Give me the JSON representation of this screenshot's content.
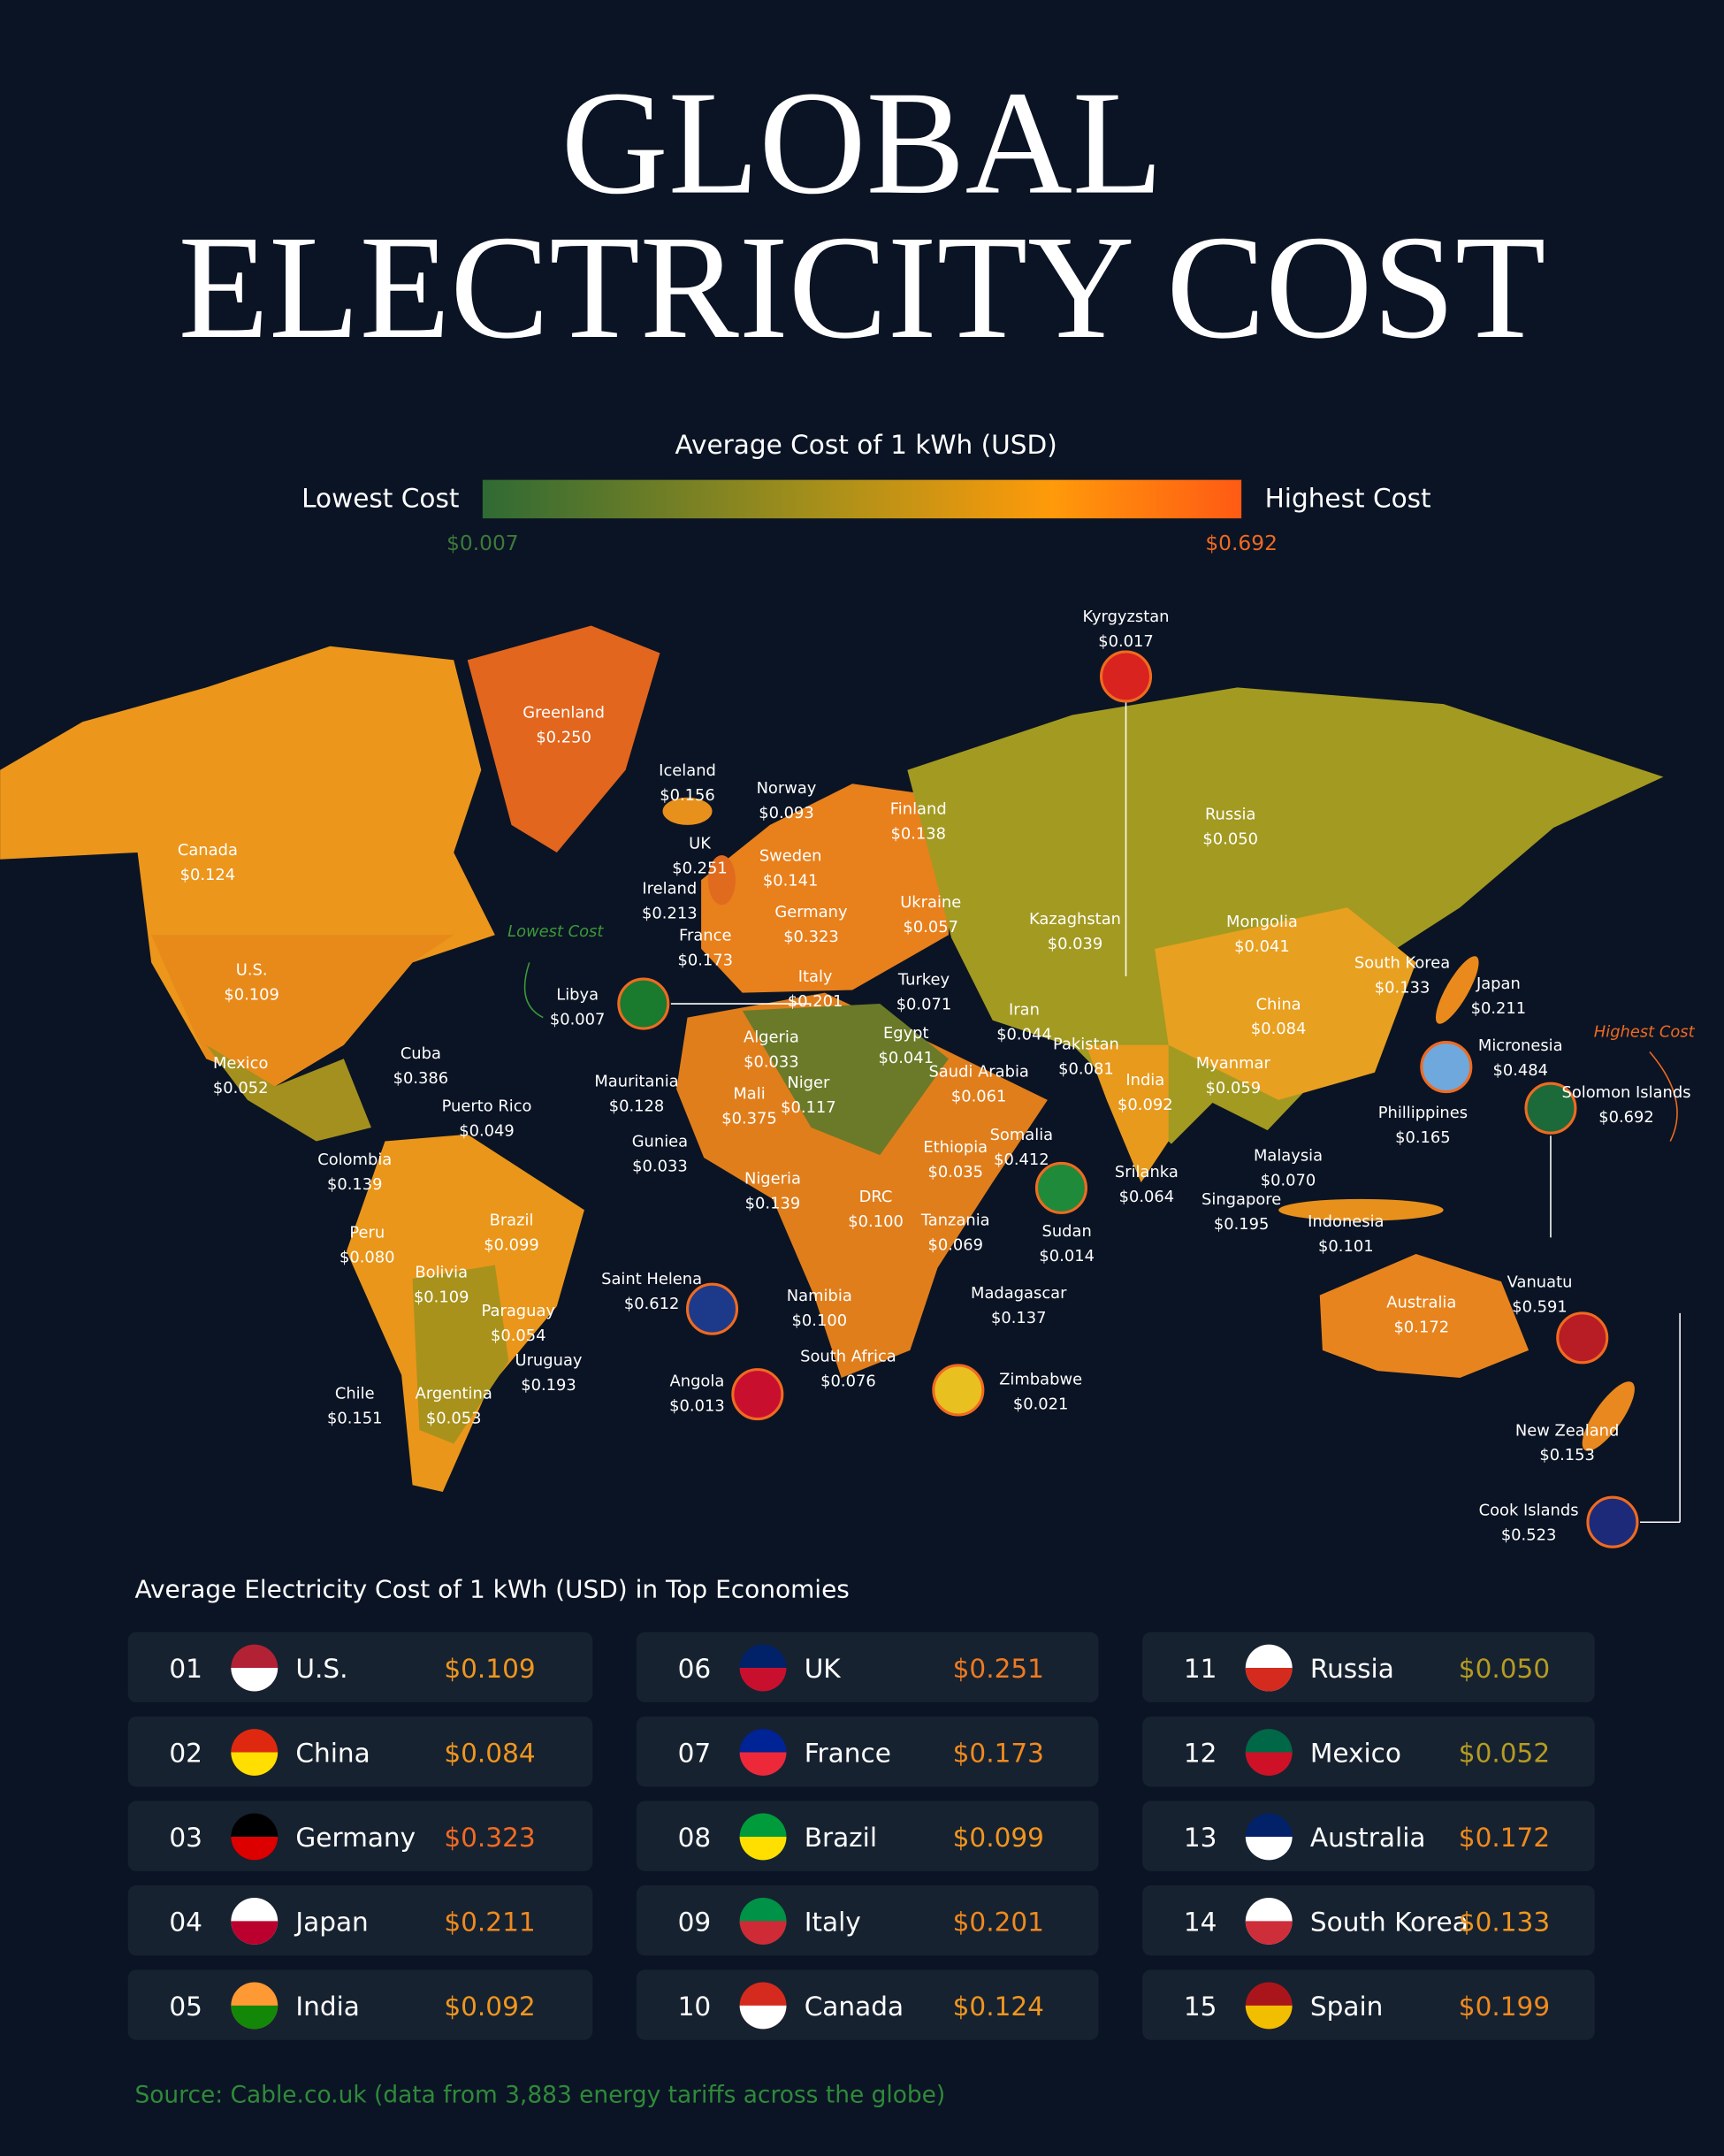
{
  "header": {
    "title_line1": "GLOBAL",
    "title_line2": "ELECTRICITY COST"
  },
  "legend": {
    "title": "Average Cost of 1 kWh (USD)",
    "low_label": "Lowest Cost",
    "high_label": "Highest Cost",
    "min": "$0.007",
    "max": "$0.692"
  },
  "map": {
    "callouts": {
      "lowest": "Lowest Cost",
      "highest": "Highest Cost"
    },
    "labels": [
      {
        "name": "Kyrgyzstan",
        "value": "$0.017"
      },
      {
        "name": "Greenland",
        "value": "$0.250"
      },
      {
        "name": "Iceland",
        "value": "$0.156"
      },
      {
        "name": "Norway",
        "value": "$0.093"
      },
      {
        "name": "Finland",
        "value": "$0.138"
      },
      {
        "name": "Russia",
        "value": "$0.050"
      },
      {
        "name": "Canada",
        "value": "$0.124"
      },
      {
        "name": "UK",
        "value": "$0.251"
      },
      {
        "name": "Sweden",
        "value": "$0.141"
      },
      {
        "name": "Ireland",
        "value": "$0.213"
      },
      {
        "name": "Germany",
        "value": "$0.323"
      },
      {
        "name": "Ukraine",
        "value": "$0.057"
      },
      {
        "name": "Kazaghstan",
        "value": "$0.039"
      },
      {
        "name": "Mongolia",
        "value": "$0.041"
      },
      {
        "name": "France",
        "value": "$0.173"
      },
      {
        "name": "U.S.",
        "value": "$0.109"
      },
      {
        "name": "South Korea",
        "value": "$0.133"
      },
      {
        "name": "Japan",
        "value": "$0.211"
      },
      {
        "name": "Libya",
        "value": "$0.007"
      },
      {
        "name": "Italy",
        "value": "$0.201"
      },
      {
        "name": "Turkey",
        "value": "$0.071"
      },
      {
        "name": "China",
        "value": "$0.084"
      },
      {
        "name": "Iran",
        "value": "$0.044"
      },
      {
        "name": "Egypt",
        "value": "$0.041"
      },
      {
        "name": "Algeria",
        "value": "$0.033"
      },
      {
        "name": "Pakistan",
        "value": "$0.081"
      },
      {
        "name": "Micronesia",
        "value": "$0.484"
      },
      {
        "name": "Cuba",
        "value": "$0.386"
      },
      {
        "name": "Mexico",
        "value": "$0.052"
      },
      {
        "name": "Mauritania",
        "value": "$0.128"
      },
      {
        "name": "Saudi Arabia",
        "value": "$0.061"
      },
      {
        "name": "India",
        "value": "$0.092"
      },
      {
        "name": "Myanmar",
        "value": "$0.059"
      },
      {
        "name": "Solomon Islands",
        "value": "$0.692"
      },
      {
        "name": "Mali",
        "value": "$0.375"
      },
      {
        "name": "Niger",
        "value": "$0.117"
      },
      {
        "name": "Puerto Rico",
        "value": "$0.049"
      },
      {
        "name": "Phillippines",
        "value": "$0.165"
      },
      {
        "name": "Somalia",
        "value": "$0.412"
      },
      {
        "name": "Ethiopia",
        "value": "$0.035"
      },
      {
        "name": "Guniea",
        "value": "$0.033"
      },
      {
        "name": "Colombia",
        "value": "$0.139"
      },
      {
        "name": "Malaysia",
        "value": "$0.070"
      },
      {
        "name": "Srilanka",
        "value": "$0.064"
      },
      {
        "name": "Nigeria",
        "value": "$0.139"
      },
      {
        "name": "DRC",
        "value": "$0.100"
      },
      {
        "name": "Singapore",
        "value": "$0.195"
      },
      {
        "name": "Sudan",
        "value": "$0.014"
      },
      {
        "name": "Indonesia",
        "value": "$0.101"
      },
      {
        "name": "Brazil",
        "value": "$0.099"
      },
      {
        "name": "Tanzania",
        "value": "$0.069"
      },
      {
        "name": "Peru",
        "value": "$0.080"
      },
      {
        "name": "Saint Helena",
        "value": "$0.612"
      },
      {
        "name": "Vanuatu",
        "value": "$0.591"
      },
      {
        "name": "Bolivia",
        "value": "$0.109"
      },
      {
        "name": "Namibia",
        "value": "$0.100"
      },
      {
        "name": "Madagascar",
        "value": "$0.137"
      },
      {
        "name": "Australia",
        "value": "$0.172"
      },
      {
        "name": "Paraguay",
        "value": "$0.054"
      },
      {
        "name": "South Africa",
        "value": "$0.076"
      },
      {
        "name": "Uruguay",
        "value": "$0.193"
      },
      {
        "name": "Angola",
        "value": "$0.013"
      },
      {
        "name": "Zimbabwe",
        "value": "$0.021"
      },
      {
        "name": "Chile",
        "value": "$0.151"
      },
      {
        "name": "Argentina",
        "value": "$0.053"
      },
      {
        "name": "New Zealand",
        "value": "$0.153"
      },
      {
        "name": "Cook Islands",
        "value": "$0.523"
      }
    ]
  },
  "table": {
    "title": "Average Electricity Cost of 1 kWh (USD) in Top Economies",
    "rows": [
      {
        "rank": "01",
        "country": "U.S.",
        "cost": "$0.109",
        "color": "#f0961e"
      },
      {
        "rank": "02",
        "country": "China",
        "cost": "$0.084",
        "color": "#f0961e"
      },
      {
        "rank": "03",
        "country": "Germany",
        "cost": "$0.323",
        "color": "#f26a22"
      },
      {
        "rank": "04",
        "country": "Japan",
        "cost": "$0.211",
        "color": "#f08a1e"
      },
      {
        "rank": "05",
        "country": "India",
        "cost": "$0.092",
        "color": "#f0961e"
      },
      {
        "rank": "06",
        "country": "UK",
        "cost": "$0.251",
        "color": "#f07a20"
      },
      {
        "rank": "07",
        "country": "France",
        "cost": "$0.173",
        "color": "#f08a1e"
      },
      {
        "rank": "08",
        "country": "Brazil",
        "cost": "$0.099",
        "color": "#f0961e"
      },
      {
        "rank": "09",
        "country": "Italy",
        "cost": "$0.201",
        "color": "#f08a1e"
      },
      {
        "rank": "10",
        "country": "Canada",
        "cost": "$0.124",
        "color": "#f0961e"
      },
      {
        "rank": "11",
        "country": "Russia",
        "cost": "$0.050",
        "color": "#b59c22"
      },
      {
        "rank": "12",
        "country": "Mexico",
        "cost": "$0.052",
        "color": "#b59c22"
      },
      {
        "rank": "13",
        "country": "Australia",
        "cost": "$0.172",
        "color": "#f08a1e"
      },
      {
        "rank": "14",
        "country": "South Korea",
        "cost": "$0.133",
        "color": "#f0961e"
      },
      {
        "rank": "15",
        "country": "Spain",
        "cost": "$0.199",
        "color": "#f08a1e"
      }
    ]
  },
  "source": "Source: Cable.co.uk (data from 3,883 energy tariffs across the globe)"
}
